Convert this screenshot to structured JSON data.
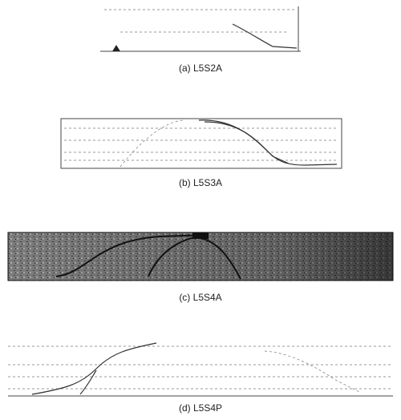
{
  "panels": [
    {
      "caption": "(a) L5S2A"
    },
    {
      "caption": "(b) L5S3A"
    },
    {
      "caption": "(c) L5S4A"
    },
    {
      "caption": "(d) L5S4P"
    }
  ]
}
